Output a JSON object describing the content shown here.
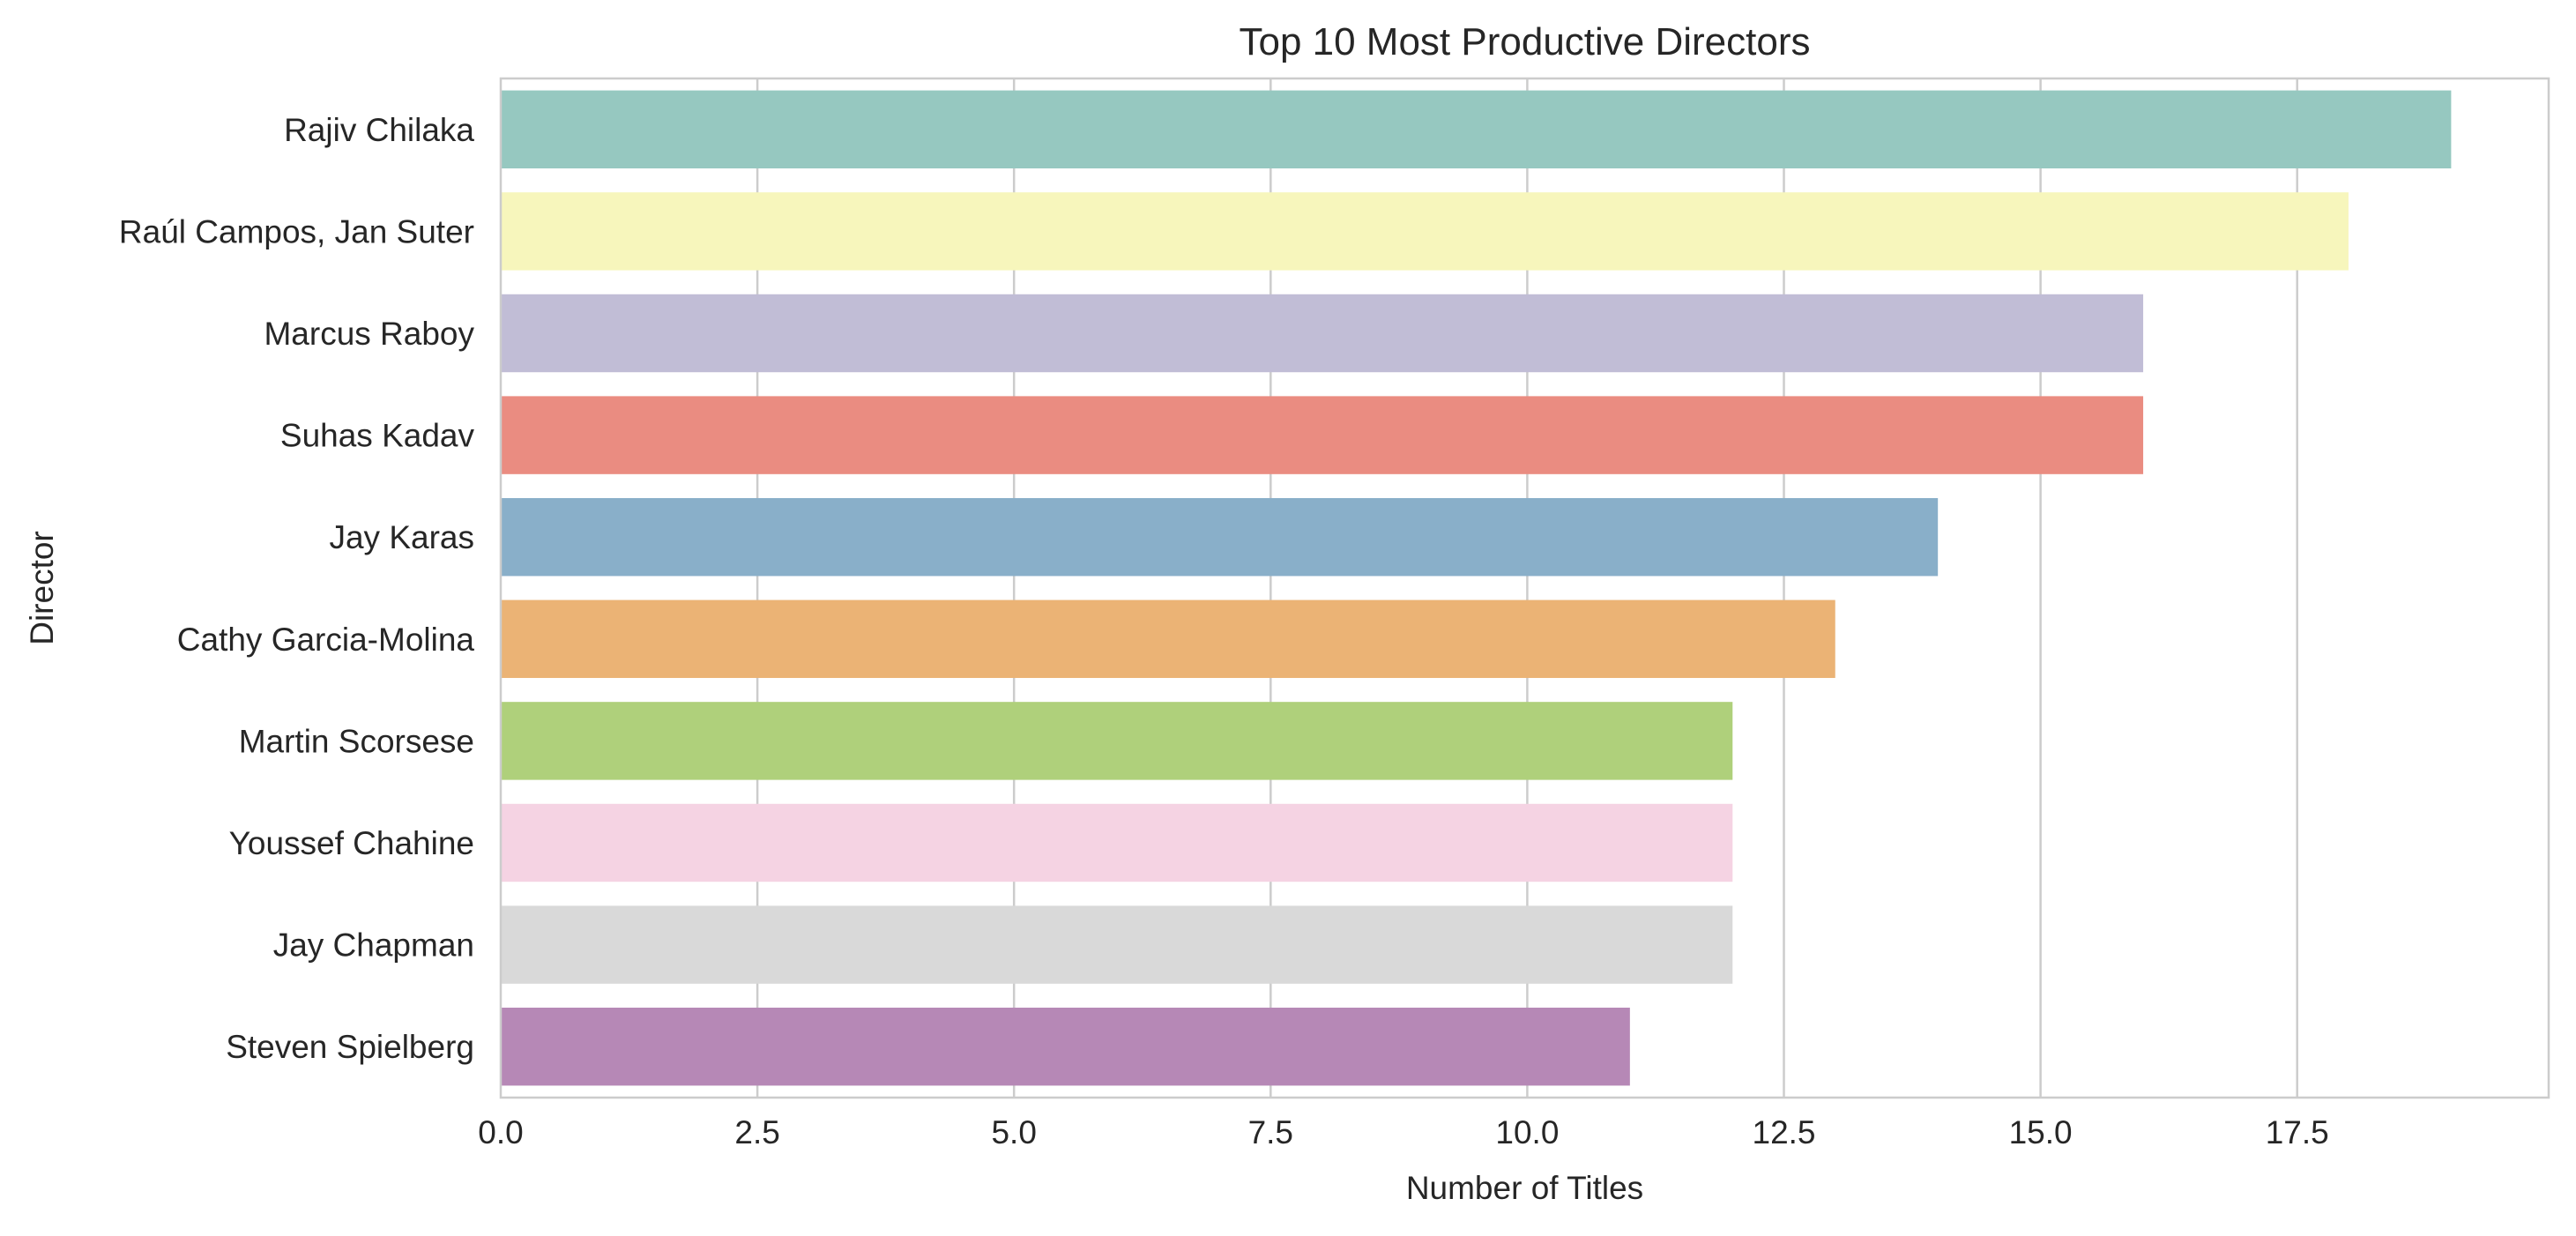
{
  "chart_data": {
    "type": "bar",
    "orientation": "horizontal",
    "title": "Top 10 Most Productive Directors",
    "xlabel": "Number of Titles",
    "ylabel": "Director",
    "categories": [
      "Rajiv Chilaka",
      "Raúl Campos, Jan Suter",
      "Marcus Raboy",
      "Suhas Kadav",
      "Jay Karas",
      "Cathy Garcia-Molina",
      "Martin Scorsese",
      "Youssef Chahine",
      "Jay Chapman",
      "Steven Spielberg"
    ],
    "values": [
      19,
      18,
      16,
      16,
      14,
      13,
      12,
      12,
      12,
      11
    ],
    "colors": [
      "#96c8c0",
      "#f7f6bc",
      "#c1bdd6",
      "#ea8c81",
      "#89afc9",
      "#ebb375",
      "#afd07b",
      "#f5d3e3",
      "#d9d9d9",
      "#b688b6"
    ],
    "xlim": [
      0,
      19.95
    ],
    "xticks": [
      0.0,
      2.5,
      5.0,
      7.5,
      10.0,
      12.5,
      15.0,
      17.5
    ],
    "xtick_labels": [
      "0.0",
      "2.5",
      "5.0",
      "7.5",
      "10.0",
      "12.5",
      "15.0",
      "17.5"
    ],
    "grid": "x",
    "legend": "none"
  }
}
